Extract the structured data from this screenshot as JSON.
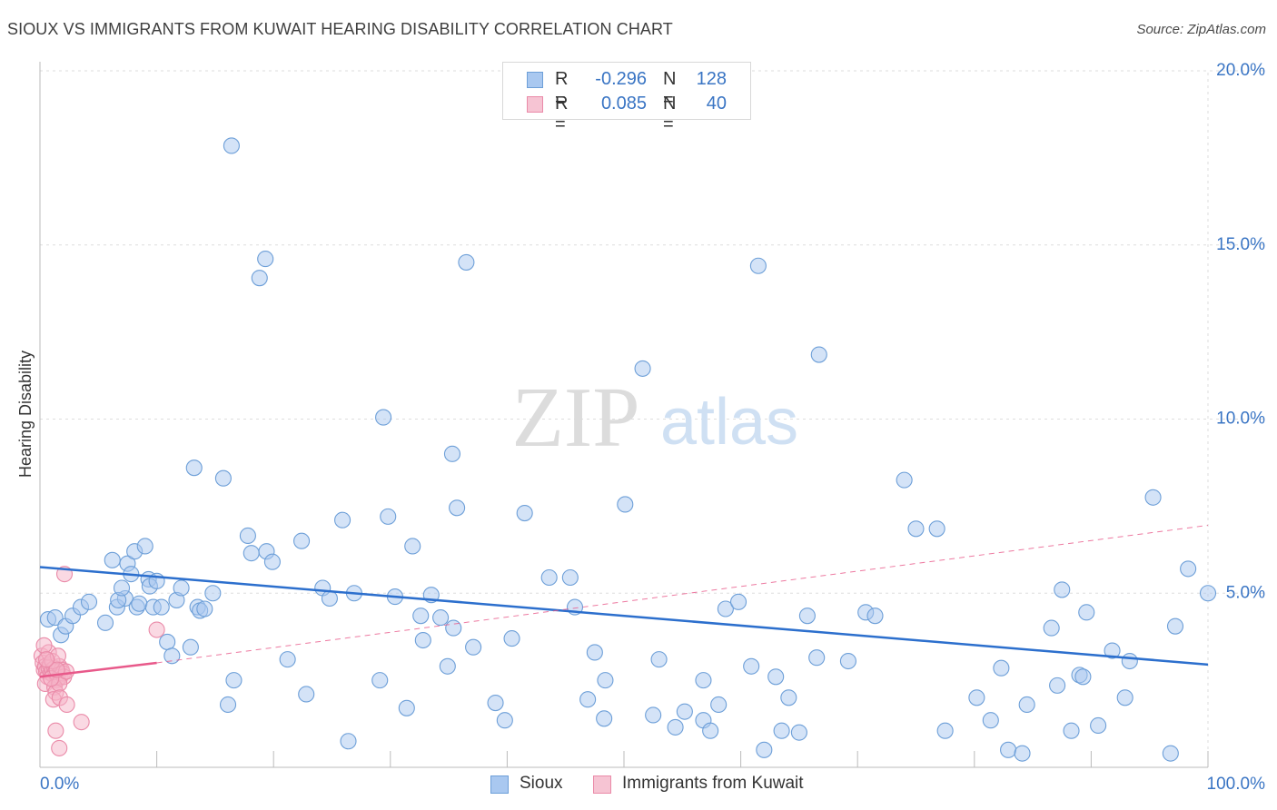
{
  "header": {
    "title": "SIOUX VS IMMIGRANTS FROM KUWAIT HEARING DISABILITY CORRELATION CHART",
    "source": "Source: ZipAtlas.com"
  },
  "watermark": {
    "zip": "ZIP",
    "atlas": "atlas"
  },
  "colors": {
    "blue_fill": "#a9c8f0",
    "blue_stroke": "#6d9fd8",
    "blue_line": "#2c6fcd",
    "pink_fill": "#f6b4c8",
    "pink_stroke": "#ea8aa8",
    "pink_line": "#e8598a",
    "axis_text": "#3a75c4",
    "grid": "#dddddd"
  },
  "legend_top": [
    {
      "r_label": "R =",
      "r_value": "-0.296",
      "n_label": "N =",
      "n_value": "128",
      "series": "blue"
    },
    {
      "r_label": "R =",
      "r_value": "0.085",
      "n_label": "N =",
      "n_value": "40",
      "series": "pink"
    }
  ],
  "legend_bottom": [
    {
      "label": "Sioux",
      "series": "blue"
    },
    {
      "label": "Immigrants from Kuwait",
      "series": "pink"
    }
  ],
  "chart_data": {
    "type": "scatter",
    "title": "SIOUX VS IMMIGRANTS FROM KUWAIT HEARING DISABILITY CORRELATION CHART",
    "xlabel": "",
    "ylabel": "Hearing Disability",
    "xlim": [
      0,
      100
    ],
    "ylim": [
      0,
      20
    ],
    "x_tick_labels": [
      "0.0%",
      "100.0%"
    ],
    "y_ticks": [
      5,
      10,
      15,
      20
    ],
    "y_tick_labels": [
      "5.0%",
      "10.0%",
      "15.0%",
      "20.0%"
    ],
    "grid": true,
    "series": [
      {
        "name": "Sioux",
        "color": "blue",
        "r": -0.296,
        "n": 128,
        "trend": {
          "x": [
            0,
            100
          ],
          "y": [
            5.75,
            2.95
          ]
        },
        "points": [
          [
            0.7,
            4.25
          ],
          [
            1.3,
            4.3
          ],
          [
            1.8,
            3.8
          ],
          [
            2.2,
            4.05
          ],
          [
            2.8,
            4.35
          ],
          [
            3.5,
            4.6
          ],
          [
            4.2,
            4.75
          ],
          [
            5.6,
            4.15
          ],
          [
            6.6,
            4.6
          ],
          [
            7.3,
            4.85
          ],
          [
            6.2,
            5.95
          ],
          [
            6.7,
            4.8
          ],
          [
            7.0,
            5.15
          ],
          [
            7.5,
            5.85
          ],
          [
            7.8,
            5.55
          ],
          [
            8.1,
            6.2
          ],
          [
            8.3,
            4.6
          ],
          [
            8.5,
            4.7
          ],
          [
            9.0,
            6.35
          ],
          [
            9.3,
            5.4
          ],
          [
            9.4,
            5.2
          ],
          [
            9.7,
            4.6
          ],
          [
            10.0,
            5.35
          ],
          [
            10.4,
            4.6
          ],
          [
            10.9,
            3.6
          ],
          [
            11.3,
            3.2
          ],
          [
            11.7,
            4.8
          ],
          [
            12.1,
            5.15
          ],
          [
            12.9,
            3.45
          ],
          [
            13.5,
            4.6
          ],
          [
            13.7,
            4.5
          ],
          [
            14.1,
            4.55
          ],
          [
            14.8,
            5.0
          ],
          [
            15.7,
            8.3
          ],
          [
            16.1,
            1.8
          ],
          [
            16.6,
            2.5
          ],
          [
            17.8,
            6.65
          ],
          [
            18.1,
            6.15
          ],
          [
            19.4,
            6.2
          ],
          [
            19.9,
            5.9
          ],
          [
            19.3,
            14.6
          ],
          [
            18.8,
            14.05
          ],
          [
            16.4,
            17.85
          ],
          [
            13.2,
            8.6
          ],
          [
            21.2,
            3.1
          ],
          [
            22.4,
            6.5
          ],
          [
            22.8,
            2.1
          ],
          [
            24.2,
            5.15
          ],
          [
            24.8,
            4.85
          ],
          [
            25.9,
            7.1
          ],
          [
            26.4,
            0.75
          ],
          [
            26.9,
            5.0
          ],
          [
            29.1,
            2.5
          ],
          [
            29.4,
            10.05
          ],
          [
            29.8,
            7.2
          ],
          [
            30.4,
            4.9
          ],
          [
            31.4,
            1.7
          ],
          [
            31.9,
            6.35
          ],
          [
            32.6,
            4.35
          ],
          [
            32.8,
            3.65
          ],
          [
            33.5,
            4.95
          ],
          [
            34.3,
            4.3
          ],
          [
            34.9,
            2.9
          ],
          [
            35.4,
            4.0
          ],
          [
            35.7,
            7.45
          ],
          [
            35.3,
            9.0
          ],
          [
            36.5,
            14.5
          ],
          [
            37.1,
            3.45
          ],
          [
            39.0,
            1.85
          ],
          [
            39.8,
            1.35
          ],
          [
            40.4,
            3.7
          ],
          [
            41.5,
            7.3
          ],
          [
            43.6,
            5.45
          ],
          [
            45.4,
            5.45
          ],
          [
            45.8,
            4.6
          ],
          [
            46.9,
            1.95
          ],
          [
            47.5,
            3.3
          ],
          [
            48.3,
            1.4
          ],
          [
            48.4,
            2.5
          ],
          [
            50.1,
            7.55
          ],
          [
            51.6,
            11.45
          ],
          [
            53.0,
            3.1
          ],
          [
            52.5,
            1.5
          ],
          [
            54.4,
            1.15
          ],
          [
            55.2,
            1.6
          ],
          [
            56.8,
            2.5
          ],
          [
            56.8,
            1.35
          ],
          [
            57.4,
            1.05
          ],
          [
            58.1,
            1.8
          ],
          [
            58.7,
            4.55
          ],
          [
            59.8,
            4.75
          ],
          [
            60.9,
            2.9
          ],
          [
            61.5,
            14.4
          ],
          [
            62.0,
            0.5
          ],
          [
            63.0,
            2.6
          ],
          [
            63.5,
            1.05
          ],
          [
            64.1,
            2.0
          ],
          [
            65.0,
            1.0
          ],
          [
            65.7,
            4.35
          ],
          [
            66.5,
            3.15
          ],
          [
            66.7,
            11.85
          ],
          [
            69.2,
            3.05
          ],
          [
            70.7,
            4.45
          ],
          [
            71.5,
            4.35
          ],
          [
            74.0,
            8.25
          ],
          [
            75.0,
            6.85
          ],
          [
            76.8,
            6.85
          ],
          [
            77.5,
            1.05
          ],
          [
            80.2,
            2.0
          ],
          [
            81.4,
            1.35
          ],
          [
            82.3,
            2.85
          ],
          [
            82.9,
            0.5
          ],
          [
            84.1,
            0.4
          ],
          [
            84.5,
            1.8
          ],
          [
            86.6,
            4.0
          ],
          [
            87.1,
            2.35
          ],
          [
            87.5,
            5.1
          ],
          [
            88.3,
            1.05
          ],
          [
            89.0,
            2.65
          ],
          [
            89.3,
            2.6
          ],
          [
            89.6,
            4.45
          ],
          [
            90.6,
            1.2
          ],
          [
            91.8,
            3.35
          ],
          [
            92.9,
            2.0
          ],
          [
            93.3,
            3.05
          ],
          [
            95.3,
            7.75
          ],
          [
            96.8,
            0.4
          ],
          [
            97.2,
            4.05
          ],
          [
            98.3,
            5.7
          ],
          [
            100.0,
            5.0
          ]
        ]
      },
      {
        "name": "Immigrants from Kuwait",
        "color": "pink",
        "r": 0.085,
        "n": 40,
        "trend": {
          "x": [
            0,
            10
          ],
          "y": [
            2.6,
            3.0
          ]
        },
        "trend_extension": {
          "x": [
            10,
            100
          ],
          "y": [
            3.0,
            6.95
          ],
          "dashed": true
        },
        "points": [
          [
            0.15,
            3.2
          ],
          [
            0.25,
            3.0
          ],
          [
            0.35,
            2.8
          ],
          [
            0.45,
            2.9
          ],
          [
            0.55,
            2.75
          ],
          [
            0.65,
            2.6
          ],
          [
            0.75,
            2.85
          ],
          [
            0.85,
            2.95
          ],
          [
            0.95,
            2.7
          ],
          [
            1.05,
            2.8
          ],
          [
            1.15,
            2.65
          ],
          [
            1.25,
            2.85
          ],
          [
            1.35,
            2.75
          ],
          [
            1.45,
            2.5
          ],
          [
            1.55,
            2.55
          ],
          [
            1.65,
            2.9
          ],
          [
            1.75,
            2.6
          ],
          [
            1.85,
            2.8
          ],
          [
            1.95,
            2.7
          ],
          [
            2.05,
            2.6
          ],
          [
            0.45,
            2.4
          ],
          [
            0.75,
            3.3
          ],
          [
            1.05,
            3.05
          ],
          [
            1.25,
            2.3
          ],
          [
            1.35,
            2.15
          ],
          [
            1.55,
            3.2
          ],
          [
            1.65,
            2.4
          ],
          [
            2.25,
            2.75
          ],
          [
            0.35,
            3.5
          ],
          [
            1.15,
            1.95
          ],
          [
            1.7,
            2.0
          ],
          [
            2.3,
            1.8
          ],
          [
            1.35,
            1.05
          ],
          [
            1.65,
            0.55
          ],
          [
            2.1,
            5.55
          ],
          [
            3.55,
            1.3
          ],
          [
            10.0,
            3.95
          ],
          [
            0.95,
            2.55
          ],
          [
            1.45,
            2.8
          ],
          [
            0.55,
            3.1
          ]
        ]
      }
    ]
  }
}
